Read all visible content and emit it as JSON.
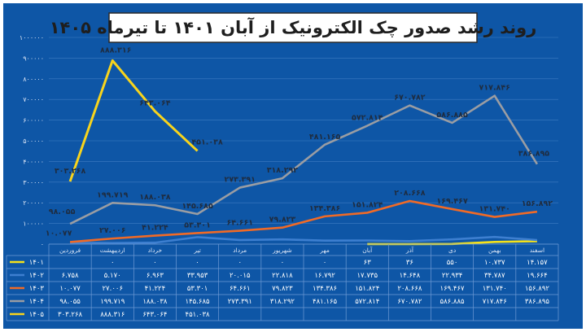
{
  "chart_data": {
    "type": "line",
    "title": "روند رشد صدور چک الکترونیک از آبان ۱۴۰۱ تا تیرماه ۱۴۰۵",
    "categories": [
      "فروردین",
      "اردیبهشت",
      "خرداد",
      "تیر",
      "مرداد",
      "شهریور",
      "مهر",
      "آبان",
      "آذر",
      "دی",
      "بهمن",
      "اسفند"
    ],
    "y_ticks": [
      "۰",
      "۱۰۰۰۰۰",
      "۲۰۰۰۰۰",
      "۳۰۰۰۰۰",
      "۴۰۰۰۰۰",
      "۵۰۰۰۰۰",
      "۶۰۰۰۰۰",
      "۷۰۰۰۰۰",
      "۸۰۰۰۰۰",
      "۹۰۰۰۰۰",
      "۱۰۰۰۰۰۰"
    ],
    "ylim": [
      0,
      1000000
    ],
    "grid": true,
    "legend": "table-bottom",
    "series": [
      {
        "name": "۱۴۰۱",
        "color": "#f5e21a",
        "values": [
          null,
          null,
          null,
          null,
          null,
          null,
          null,
          63,
          36,
          550,
          10737,
          14157
        ],
        "cells": [
          "",
          "۰",
          "۰",
          "۰",
          "۰",
          "۰",
          "۰",
          "۶۳",
          "۳۶",
          "۵۵۰",
          "۱۰.۷۳۷",
          "۱۴.۱۵۷"
        ]
      },
      {
        "name": "۱۴۰۲",
        "color": "#3d7fd0",
        "values": [
          6758,
          5170,
          6963,
          33953,
          20015,
          22818,
          16792,
          17735,
          14648,
          22934,
          34787,
          19664
        ],
        "cells": [
          "۶.۷۵۸",
          "۵.۱۷۰",
          "۶.۹۶۳",
          "۳۳.۹۵۳",
          "۲۰.۰۱۵",
          "۲۲.۸۱۸",
          "۱۶.۷۹۲",
          "۱۷.۷۳۵",
          "۱۴.۶۴۸",
          "۲۲.۹۳۴",
          "۳۴.۷۸۷",
          "۱۹.۶۶۴"
        ]
      },
      {
        "name": "۱۴۰۳",
        "color": "#f06a26",
        "values": [
          10077,
          27006,
          41224,
          53301,
          64661,
          79823,
          134386,
          151824,
          208668,
          169467,
          131740,
          156892
        ],
        "cells": [
          "۱۰.۰۷۷",
          "۲۷.۰۰۶",
          "۴۱.۲۲۴",
          "۵۳.۳۰۱",
          "۶۴.۶۶۱",
          "۷۹.۸۲۳",
          "۱۳۴.۳۸۶",
          "۱۵۱.۸۲۴",
          "۲۰۸.۶۶۸",
          "۱۶۹.۴۶۷",
          "۱۳۱.۷۴۰",
          "۱۵۶.۸۹۲"
        ]
      },
      {
        "name": "۱۴۰۴",
        "color": "#9a9da3",
        "values": [
          98055,
          199719,
          188038,
          145685,
          273391,
          318292,
          481165,
          572814,
          670782,
          586885,
          717846,
          386895
        ],
        "cells": [
          "۹۸.۰۵۵",
          "۱۹۹.۷۱۹",
          "۱۸۸.۰۳۸",
          "۱۴۵.۶۸۵",
          "۲۷۳.۳۹۱",
          "۳۱۸.۲۹۲",
          "۴۸۱.۱۶۵",
          "۵۷۲.۸۱۴",
          "۶۷۰.۷۸۲",
          "۵۸۶.۸۸۵",
          "۷۱۷.۸۴۶",
          "۳۸۶.۸۹۵"
        ]
      },
      {
        "name": "۱۴۰۵",
        "color": "#f8d41c",
        "values": [
          303268,
          888316,
          643064,
          451038,
          null,
          null,
          null,
          null,
          null,
          null,
          null,
          null
        ],
        "cells": [
          "۳۰۳.۲۶۸",
          "۸۸۸.۳۱۶",
          "۶۴۳.۰۶۴",
          "۴۵۱.۰۳۸",
          "",
          "",
          "",
          "",
          "",
          "",
          "",
          ""
        ]
      }
    ],
    "data_labels": [
      {
        "series": 4,
        "i": 0,
        "text": "۳۰۳.۲۶۸"
      },
      {
        "series": 4,
        "i": 1,
        "text": "۸۸۸.۳۱۶"
      },
      {
        "series": 4,
        "i": 2,
        "text": "۶۴۳.۰۶۴"
      },
      {
        "series": 4,
        "i": 3,
        "text": "۴۵۱.۰۳۸"
      },
      {
        "series": 3,
        "i": 0,
        "text": "۹۸.۰۵۵"
      },
      {
        "series": 3,
        "i": 1,
        "text": "۱۹۹.۷۱۹"
      },
      {
        "series": 3,
        "i": 2,
        "text": "۱۸۸.۰۳۸"
      },
      {
        "series": 3,
        "i": 3,
        "text": "۱۴۵.۶۸۵"
      },
      {
        "series": 3,
        "i": 4,
        "text": "۲۷۳.۳۹۱"
      },
      {
        "series": 3,
        "i": 5,
        "text": "۳۱۸.۲۹۲"
      },
      {
        "series": 3,
        "i": 6,
        "text": "۴۸۱.۱۶۵"
      },
      {
        "series": 3,
        "i": 7,
        "text": "۵۷۲.۸۱۴"
      },
      {
        "series": 3,
        "i": 8,
        "text": "۶۷۰.۷۸۲"
      },
      {
        "series": 3,
        "i": 9,
        "text": "۵۸۶.۸۸۵"
      },
      {
        "series": 3,
        "i": 10,
        "text": "۷۱۷.۸۴۶"
      },
      {
        "series": 3,
        "i": 11,
        "text": "۳۸۶.۸۹۵"
      },
      {
        "series": 2,
        "i": 0,
        "text": "۱۰.۰۷۷"
      },
      {
        "series": 2,
        "i": 1,
        "text": "۲۷.۰۰۶"
      },
      {
        "series": 2,
        "i": 2,
        "text": "۴۱.۲۲۴"
      },
      {
        "series": 2,
        "i": 3,
        "text": "۵۳.۳۰۱"
      },
      {
        "series": 2,
        "i": 4,
        "text": "۶۴.۶۶۱"
      },
      {
        "series": 2,
        "i": 5,
        "text": "۷۹.۸۲۳"
      },
      {
        "series": 2,
        "i": 6,
        "text": "۱۳۴.۳۸۶"
      },
      {
        "series": 2,
        "i": 7,
        "text": "۱۵۱.۸۲۴"
      },
      {
        "series": 2,
        "i": 8,
        "text": "۲۰۸.۶۶۸"
      },
      {
        "series": 2,
        "i": 9,
        "text": "۱۶۹.۴۶۷"
      },
      {
        "series": 2,
        "i": 10,
        "text": "۱۳۱.۷۴۰"
      },
      {
        "series": 2,
        "i": 11,
        "text": "۱۵۶.۸۹۲"
      }
    ]
  }
}
